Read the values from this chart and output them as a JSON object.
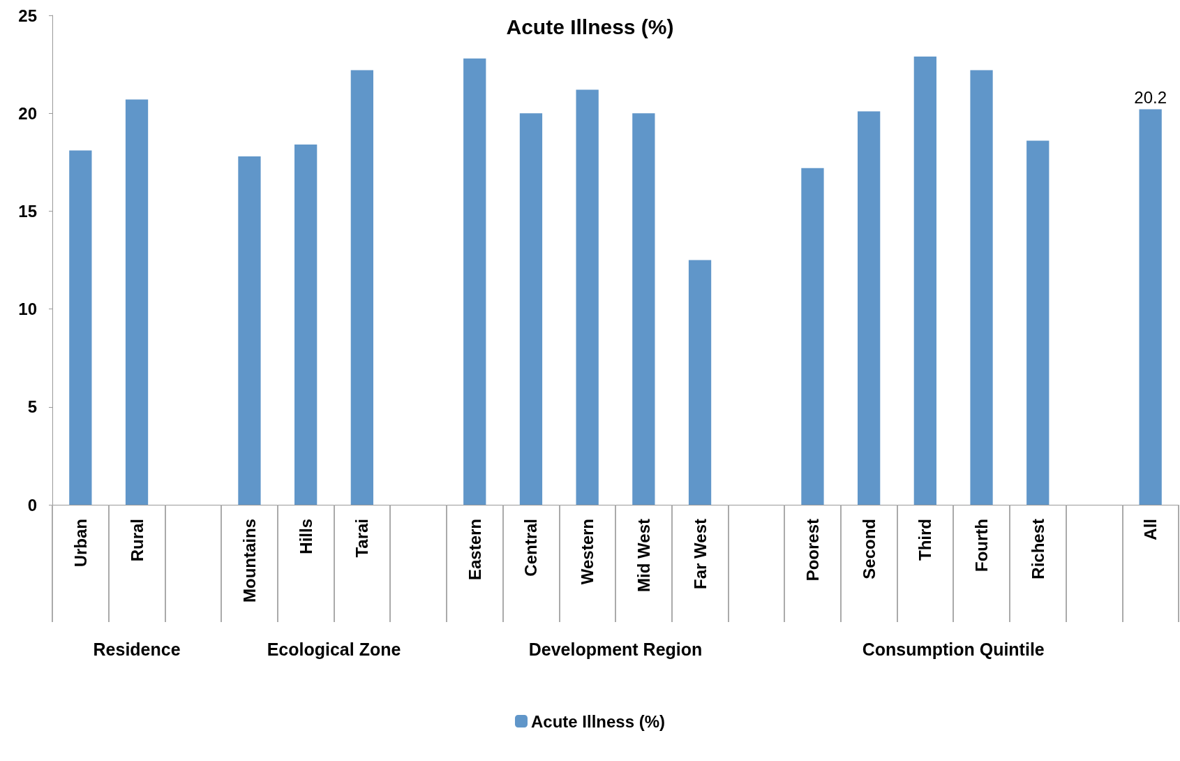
{
  "chart_data": {
    "type": "bar",
    "title": "Acute Illness (%)",
    "categories": [
      "Urban",
      "Rural",
      null,
      "Mountains",
      "Hills",
      "Tarai",
      null,
      "Eastern",
      "Central",
      "Western",
      "Mid West",
      "Far West",
      null,
      "Poorest",
      "Second",
      "Third",
      "Fourth",
      "Richest",
      null,
      "All"
    ],
    "series": [
      {
        "name": "Acute Illness (%)",
        "color": "#6096c9",
        "values": [
          18.1,
          20.7,
          null,
          17.8,
          18.4,
          22.2,
          null,
          22.8,
          20.0,
          21.2,
          20.0,
          12.5,
          null,
          17.2,
          20.1,
          22.9,
          22.2,
          18.6,
          null,
          20.2
        ],
        "value_labels": [
          null,
          null,
          null,
          null,
          null,
          null,
          null,
          null,
          null,
          null,
          null,
          null,
          null,
          null,
          null,
          null,
          null,
          null,
          null,
          "20.2"
        ]
      }
    ],
    "ylim": [
      0,
      25
    ],
    "yticks": [
      0,
      5,
      10,
      15,
      20,
      25
    ],
    "grid": false,
    "legend": "bottom",
    "annotations": [
      "Residence",
      "Ecological Zone",
      "Development Region",
      "Consumption Quintile"
    ]
  }
}
